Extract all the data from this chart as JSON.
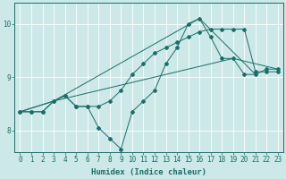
{
  "xlabel": "Humidex (Indice chaleur)",
  "bg_color": "#cce8e8",
  "grid_color": "#ffffff",
  "line_color": "#1a6e6a",
  "xlim": [
    -0.5,
    23.5
  ],
  "ylim": [
    7.6,
    10.4
  ],
  "yticks": [
    8,
    9,
    10
  ],
  "xticks": [
    0,
    1,
    2,
    3,
    4,
    5,
    6,
    7,
    8,
    9,
    10,
    11,
    12,
    13,
    14,
    15,
    16,
    17,
    18,
    19,
    20,
    21,
    22,
    23
  ],
  "series1_x": [
    0,
    1,
    2,
    3,
    4,
    5,
    6,
    7,
    8,
    9,
    10,
    11,
    12,
    13,
    14,
    15,
    16,
    17,
    18,
    19,
    20,
    21,
    22,
    23
  ],
  "series1_y": [
    8.35,
    8.35,
    8.35,
    8.55,
    8.65,
    8.45,
    8.45,
    8.05,
    7.85,
    7.65,
    8.35,
    8.55,
    8.75,
    9.25,
    9.55,
    10.0,
    10.1,
    9.75,
    9.35,
    9.35,
    9.05,
    9.05,
    9.15,
    9.15
  ],
  "series2_x": [
    0,
    1,
    2,
    3,
    4,
    5,
    6,
    7,
    8,
    9,
    10,
    11,
    12,
    13,
    14,
    15,
    16,
    17,
    18,
    19,
    20,
    21,
    22,
    23
  ],
  "series2_y": [
    8.35,
    8.35,
    8.35,
    8.55,
    8.65,
    8.45,
    8.45,
    8.45,
    8.55,
    8.75,
    9.05,
    9.25,
    9.45,
    9.55,
    9.65,
    9.75,
    9.85,
    9.9,
    9.9,
    9.9,
    9.9,
    9.1,
    9.1,
    9.1
  ],
  "line3_x": [
    0,
    3,
    19,
    23
  ],
  "line3_y": [
    8.35,
    8.55,
    9.35,
    9.15
  ],
  "line4_x": [
    0,
    3,
    16,
    21
  ],
  "line4_y": [
    8.35,
    8.55,
    10.1,
    9.05
  ]
}
